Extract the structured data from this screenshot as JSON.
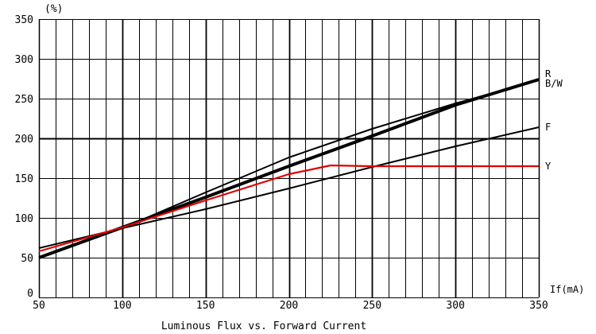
{
  "chart_data": {
    "type": "line",
    "title": "Luminous Flux vs. Forward Current",
    "xlabel": "If(mA)",
    "ylabel": "(%)",
    "xlim": [
      50,
      350
    ],
    "ylim": [
      0,
      350
    ],
    "x_ticks": [
      50,
      100,
      150,
      200,
      250,
      300,
      350
    ],
    "y_ticks": [
      0,
      50,
      100,
      150,
      200,
      250,
      300,
      350
    ],
    "grid": true,
    "series": [
      {
        "name": "R",
        "color": "#000000",
        "x": [
          50,
          100,
          150,
          200,
          250,
          300,
          350
        ],
        "y": [
          50,
          87,
          132,
          176,
          212,
          244,
          273
        ]
      },
      {
        "name": "B/W",
        "color": "#000000",
        "x": [
          50,
          100,
          150,
          200,
          250,
          300,
          350
        ],
        "y": [
          50,
          88,
          126,
          165,
          203,
          242,
          274
        ]
      },
      {
        "name": "F",
        "color": "#000000",
        "x": [
          50,
          100,
          150,
          200,
          250,
          300,
          350
        ],
        "y": [
          62,
          87,
          111,
          137,
          164,
          190,
          214
        ]
      },
      {
        "name": "Y",
        "color": "#e00000",
        "x": [
          50,
          100,
          150,
          200,
          225,
          250,
          300,
          350
        ],
        "y": [
          58,
          88,
          122,
          155,
          166,
          165,
          165,
          165
        ]
      }
    ]
  }
}
